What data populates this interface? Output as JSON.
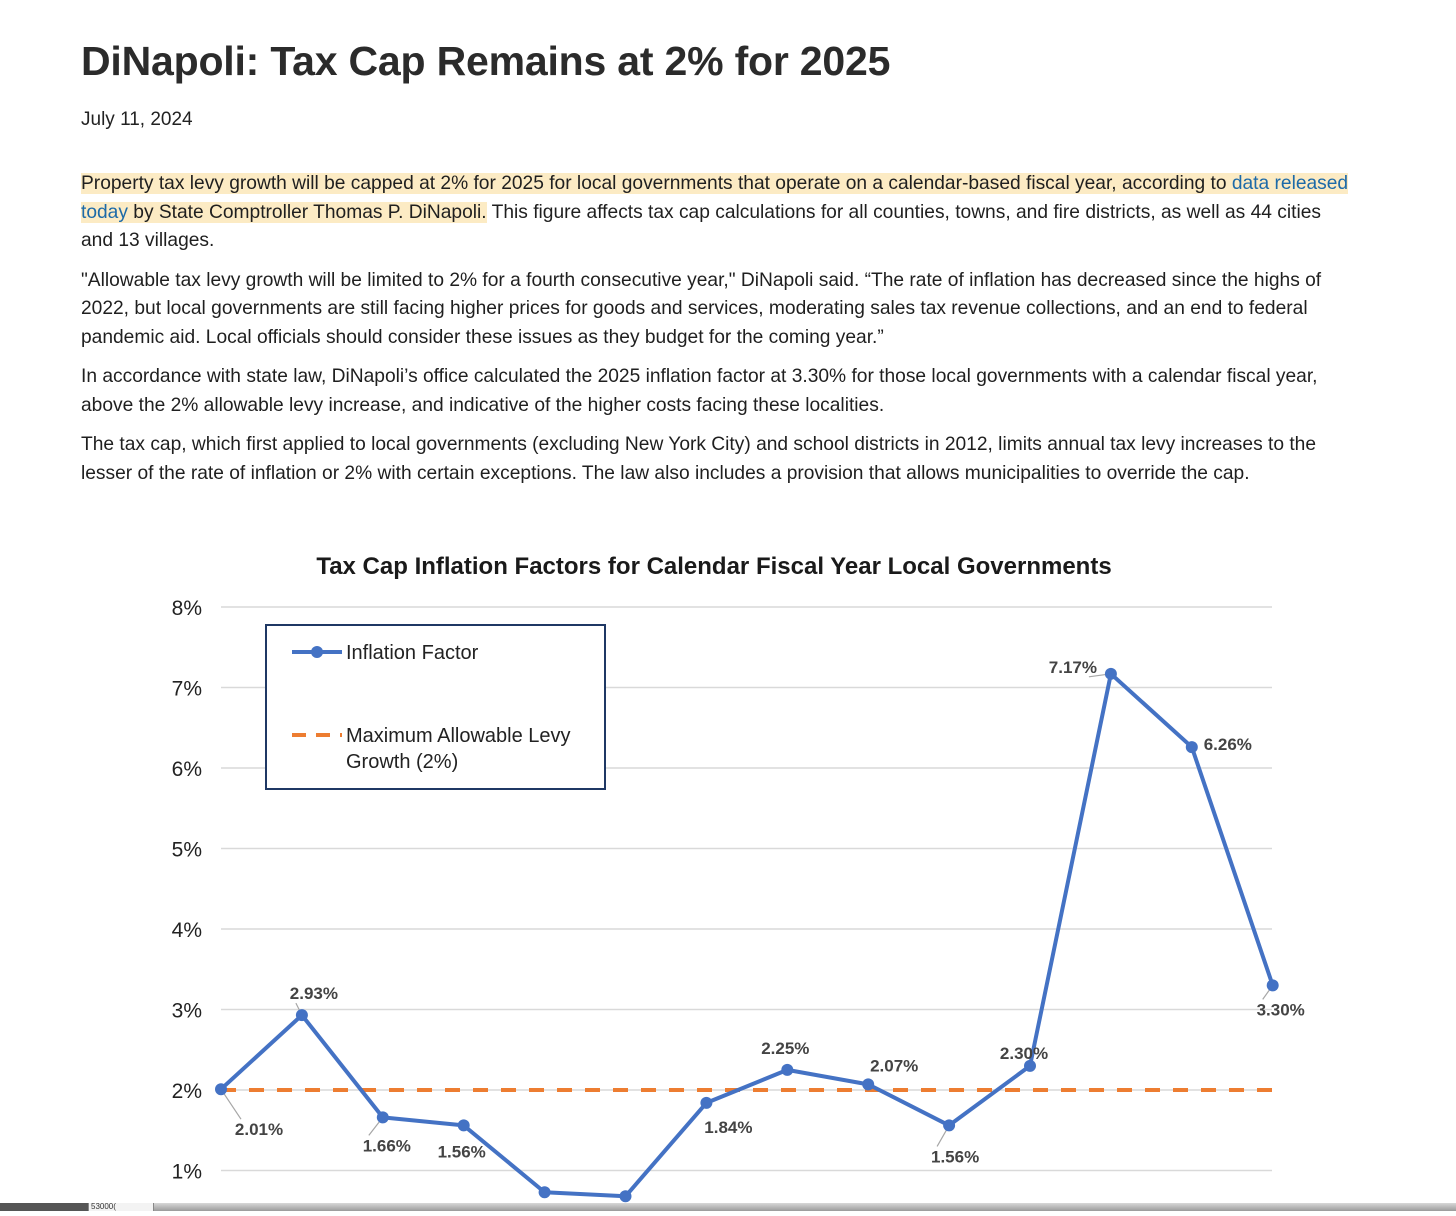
{
  "article": {
    "title": "DiNapoli: Tax Cap Remains at 2% for 2025",
    "date": "July 11, 2024",
    "p1": {
      "hl_a": "Property tax levy growth will be capped at 2% for 2025 for local governments that operate on a calendar-based fiscal year, according to ",
      "link": "data released today",
      "hl_b": " by State Comptroller Thomas P. DiNapoli.",
      "rest": " This figure affects tax cap calculations for all counties, towns, and fire districts, as well as 44 cities and 13 villages."
    },
    "p2": "\"Allowable tax levy growth will be limited to 2% for a fourth consecutive year,\" DiNapoli said. “The rate of inflation has decreased since the highs of 2022, but local governments are still facing higher prices for goods and services, moderating sales tax revenue collections, and an end to federal pandemic aid. Local officials should consider these issues as they budget for the coming year.”",
    "p3": "In accordance with state law, DiNapoli’s office calculated the 2025 inflation factor at 3.30% for those local governments with a calendar fiscal year, above the 2% allowable levy increase, and indicative of the higher costs facing these localities.",
    "p4": "The tax cap, which first applied to local governments (excluding New York City) and school districts in 2012, limits annual tax levy increases to the lesser of the rate of inflation or 2% with certain exceptions. The law also includes a provision that allows municipalities to override the cap."
  },
  "chart_data": {
    "type": "line",
    "title": "Tax Cap Inflation Factors for Calendar Fiscal Year Local Governments",
    "ylim": [
      0,
      8
    ],
    "yticks": [
      "1%",
      "2%",
      "3%",
      "4%",
      "5%",
      "6%",
      "7%",
      "8%"
    ],
    "grid": true,
    "legend_position": "top-left",
    "series": [
      {
        "name": "Inflation Factor",
        "color": "#4472c4",
        "values": [
          2.01,
          2.93,
          1.66,
          1.56,
          0.73,
          0.68,
          1.84,
          2.25,
          2.07,
          1.56,
          2.3,
          7.17,
          6.26,
          3.3
        ],
        "labels": [
          "2.01%",
          "2.93%",
          "1.66%",
          "1.56%",
          "",
          "",
          "1.84%",
          "2.25%",
          "2.07%",
          "1.56%",
          "2.30%",
          "7.17%",
          "6.26%",
          "3.30%"
        ]
      },
      {
        "name": "Maximum Allowable Levy Growth (2%)",
        "legend_lines": [
          "Maximum Allowable Levy",
          "Growth (2%)"
        ],
        "color": "#ed7d31",
        "constant": 2.0,
        "style": "dashed"
      }
    ]
  },
  "footer": {
    "cell_text": "53000("
  }
}
